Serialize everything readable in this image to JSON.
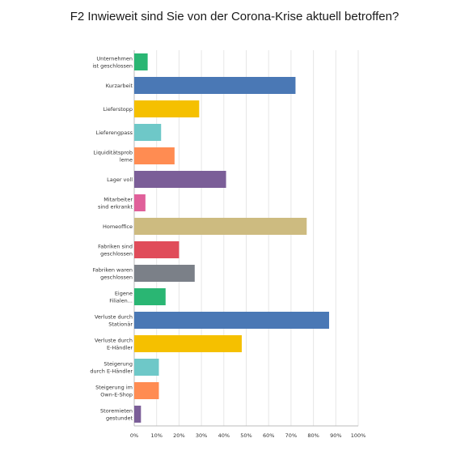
{
  "chart_data": {
    "type": "bar",
    "orientation": "horizontal",
    "title": "F2 Inwieweit sind Sie von der Corona-Krise aktuell betroffen?",
    "xlim": [
      0,
      100
    ],
    "ticks": [
      "0%",
      "10%",
      "20%",
      "30%",
      "40%",
      "50%",
      "60%",
      "70%",
      "80%",
      "90%",
      "100%"
    ],
    "grid": true,
    "categories": [
      [
        "Unternehmen",
        "ist geschlossen"
      ],
      [
        "Kurzarbeit"
      ],
      [
        "Lieferstopp"
      ],
      [
        "Lieferengpass"
      ],
      [
        "Liquiditätsprob",
        "leme"
      ],
      [
        "Lager voll"
      ],
      [
        "Mitarbeiter",
        "sind erkrankt"
      ],
      [
        "Homeoffice"
      ],
      [
        "Fabriken sind",
        "geschlossen"
      ],
      [
        "Fabriken waren",
        "geschlossen"
      ],
      [
        "Eigene",
        "Filialen..."
      ],
      [
        "Verluste durch",
        "Stationär"
      ],
      [
        "Verluste durch",
        "E-Händler"
      ],
      [
        "Steigerung",
        "durch E-Händler"
      ],
      [
        "Steigerung im",
        "Own-E-Shop"
      ],
      [
        "Storemieten",
        "gestundet"
      ]
    ],
    "values": [
      6,
      72,
      29,
      12,
      18,
      41,
      5,
      77,
      20,
      27,
      14,
      87,
      48,
      11,
      11,
      3
    ],
    "colors": [
      "#2ab673",
      "#4a78b5",
      "#f5c000",
      "#6ec8c8",
      "#ff8c52",
      "#7b5e98",
      "#e0609a",
      "#cdbb80",
      "#e04c5a",
      "#7b8088",
      "#2ab673",
      "#4a78b5",
      "#f5c000",
      "#6ec8c8",
      "#ff8c52",
      "#7b5e98"
    ]
  }
}
